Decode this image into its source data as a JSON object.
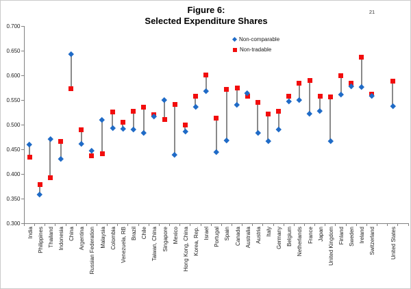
{
  "page_number": "21",
  "chart_data": {
    "type": "scatter",
    "title": "Figure 6:",
    "subtitle": "Selected Expenditure Shares",
    "grid": false,
    "legend_position": "top-right-inside",
    "ylim": [
      0.3,
      0.7
    ],
    "ytick_step": 0.05,
    "ytick_labels": [
      "0.700",
      "0.650",
      "0.600",
      "0.550",
      "0.500",
      "0.450",
      "0.400",
      "0.350",
      "0.300"
    ],
    "xlabel": "",
    "ylabel": "",
    "categories": [
      "India",
      "Philippines",
      "Thailand",
      "Indonesia",
      "China",
      "Argentina",
      "Russian Federation",
      "Malaysia",
      "Colombia",
      "Venezuela, RB",
      "Brazil",
      "Chile",
      "Taiwan, China",
      "Singapore",
      "Mexico",
      "Hong Kong, China",
      "Korea, Rep.",
      "Israel",
      "Portugal",
      "Spain",
      "Canada",
      "Australia",
      "Austria",
      "Italy",
      "Germany",
      "Belgium",
      "Netherlands",
      "France",
      "Japan",
      "United Kingdom",
      "Finland",
      "Sweden",
      "Ireland",
      "Switzerland",
      "",
      "United States"
    ],
    "series": [
      {
        "name": "Non-comparable",
        "marker": "diamond",
        "color": "#1F6BC7",
        "values": [
          0.46,
          0.359,
          0.471,
          0.431,
          0.644,
          0.462,
          0.447,
          0.51,
          0.494,
          0.492,
          0.491,
          0.483,
          0.517,
          0.551,
          0.439,
          0.487,
          0.537,
          0.569,
          0.445,
          0.469,
          0.54,
          0.564,
          0.483,
          0.467,
          0.491,
          0.548,
          0.55,
          0.522,
          0.528,
          0.467,
          0.561,
          0.578,
          0.577,
          0.558,
          null,
          0.538
        ]
      },
      {
        "name": "Non-tradable",
        "marker": "square",
        "color": "#F20D0D",
        "values": [
          0.434,
          0.379,
          0.393,
          0.466,
          0.573,
          0.489,
          0.437,
          0.441,
          0.526,
          0.505,
          0.527,
          0.535,
          0.52,
          0.51,
          0.541,
          0.499,
          0.557,
          0.601,
          0.513,
          0.571,
          0.574,
          0.557,
          0.545,
          0.521,
          0.527,
          0.557,
          0.584,
          0.59,
          0.558,
          0.556,
          0.6,
          0.584,
          0.637,
          0.562,
          null,
          0.588
        ]
      }
    ],
    "connector_color": "#898989",
    "axis_color": "#808080",
    "text_color": "#1a1a1a"
  }
}
